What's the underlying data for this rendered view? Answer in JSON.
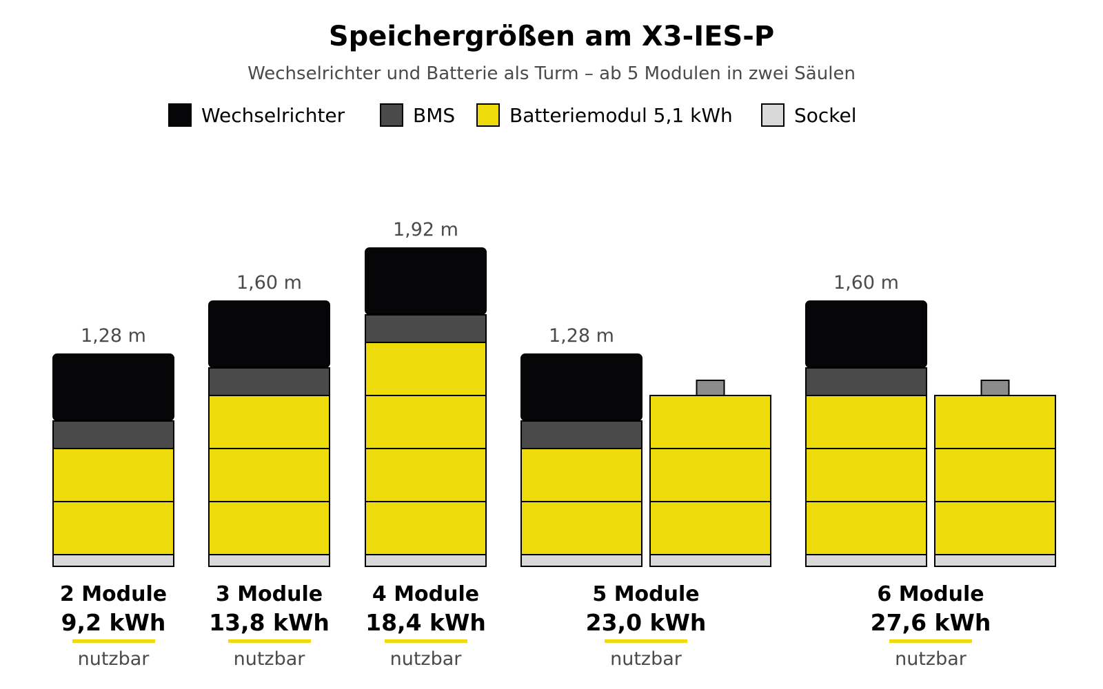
{
  "title": "Speichergrößen am X3-IES-P",
  "subtitle": "Wechselrichter und Batterie als Turm – ab 5 Modulen in zwei Säulen",
  "colors": {
    "inverter": "#060608",
    "bms": "#4a4a4a",
    "module": "#eedb0b",
    "base": "#d9d9d9",
    "cap": "#8c8c8c",
    "accent_line": "#eedb0b"
  },
  "legend": [
    {
      "label": "Wechselrichter",
      "color": "#060608"
    },
    {
      "label": "BMS",
      "color": "#4a4a4a"
    },
    {
      "label": "Batteriemodul 5,1 kWh",
      "color": "#eedb0b"
    },
    {
      "label": "Sockel",
      "color": "#d9d9d9"
    }
  ],
  "configurations": [
    {
      "modules_label": "2 Module",
      "capacity": "9,2 kWh",
      "note": "nutzbar",
      "height_label": "1,28 m",
      "columns": [
        {
          "type": "main",
          "modules": 2
        }
      ]
    },
    {
      "modules_label": "3 Module",
      "capacity": "13,8 kWh",
      "note": "nutzbar",
      "height_label": "1,60 m",
      "columns": [
        {
          "type": "main",
          "modules": 3
        }
      ]
    },
    {
      "modules_label": "4 Module",
      "capacity": "18,4 kWh",
      "note": "nutzbar",
      "height_label": "1,92 m",
      "columns": [
        {
          "type": "main",
          "modules": 4
        }
      ]
    },
    {
      "modules_label": "5 Module",
      "capacity": "23,0 kWh",
      "note": "nutzbar",
      "height_label": "1,28 m",
      "columns": [
        {
          "type": "main",
          "modules": 2
        },
        {
          "type": "extension",
          "modules": 3
        }
      ]
    },
    {
      "modules_label": "6 Module",
      "capacity": "27,6 kWh",
      "note": "nutzbar",
      "height_label": "1,60 m",
      "columns": [
        {
          "type": "main",
          "modules": 3
        },
        {
          "type": "extension",
          "modules": 3
        }
      ]
    }
  ]
}
